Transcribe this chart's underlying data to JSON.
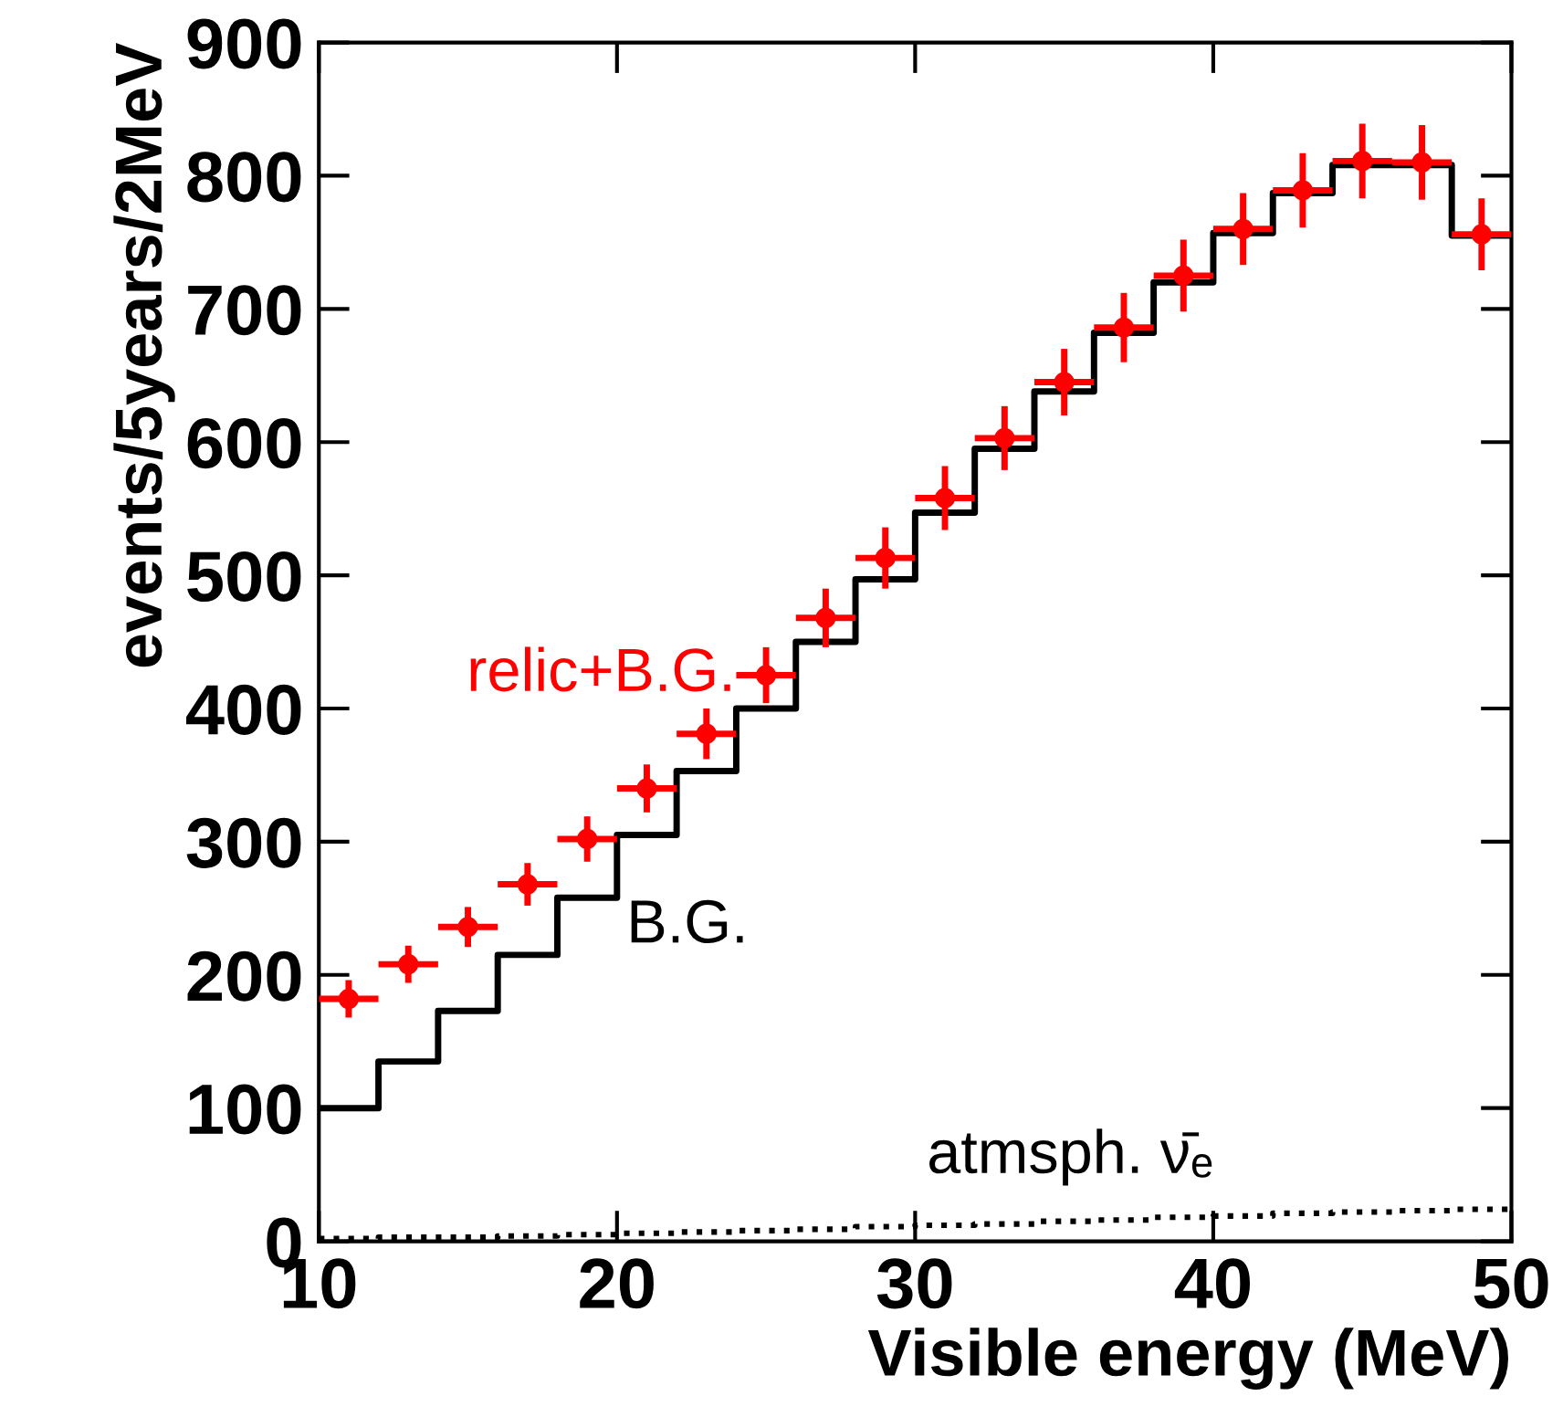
{
  "chart_data": {
    "type": "step",
    "xlabel": "Visible energy (MeV)",
    "ylabel": "events/5years/2MeV",
    "xlim": [
      10,
      50
    ],
    "ylim": [
      0,
      900
    ],
    "xticks": [
      10,
      20,
      30,
      40,
      50
    ],
    "yticks": [
      0,
      100,
      200,
      300,
      400,
      500,
      600,
      700,
      800,
      900
    ],
    "grid": false,
    "legend": false,
    "x": [
      10,
      12,
      14,
      16,
      18,
      20,
      22,
      24,
      26,
      28,
      30,
      32,
      34,
      36,
      38,
      40,
      42,
      44,
      46,
      48,
      50
    ],
    "series": [
      {
        "color": "#000000",
        "line_style": "solid",
        "values": [
          100,
          135,
          173,
          215,
          258,
          305,
          353,
          400,
          450,
          497,
          547,
          595,
          638,
          682,
          720,
          757,
          787,
          808,
          808,
          755,
          755
        ]
      },
      {
        "color": "#000000",
        "line_style": "dotted",
        "values": [
          2,
          3,
          3,
          4,
          5,
          6,
          7,
          8,
          9,
          11,
          12,
          13,
          15,
          16,
          18,
          19,
          21,
          22,
          23,
          24,
          24
        ]
      },
      {
        "type": "scatter",
        "color": "#ff0000",
        "marker": "circle",
        "x": [
          11,
          13,
          15,
          17,
          19,
          21,
          23,
          25,
          27,
          29,
          31,
          33,
          35,
          37,
          39,
          41,
          43,
          45,
          47,
          49
        ],
        "values": [
          182,
          208,
          236,
          268,
          302,
          340,
          381,
          425,
          468,
          513,
          558,
          603,
          645,
          686,
          725,
          760,
          789,
          811,
          810,
          756
        ],
        "errors": [
          14,
          14,
          15,
          16,
          17,
          18,
          19,
          21,
          22,
          23,
          24,
          24,
          25,
          26,
          27,
          27,
          28,
          28,
          28,
          27
        ],
        "xerrors": [
          1,
          1,
          1,
          1,
          1,
          1,
          1,
          1,
          1,
          1,
          1,
          1,
          1,
          1,
          1,
          1,
          1,
          1,
          1,
          1
        ]
      }
    ],
    "annotations": [
      {
        "text": "relic+B.G.",
        "x": 25,
        "y": 425
      },
      {
        "text": "B.G.",
        "x": 21,
        "y": 305
      },
      {
        "text": "atmsph. ν̄ₑ",
        "x": 40,
        "y": 19
      }
    ]
  }
}
